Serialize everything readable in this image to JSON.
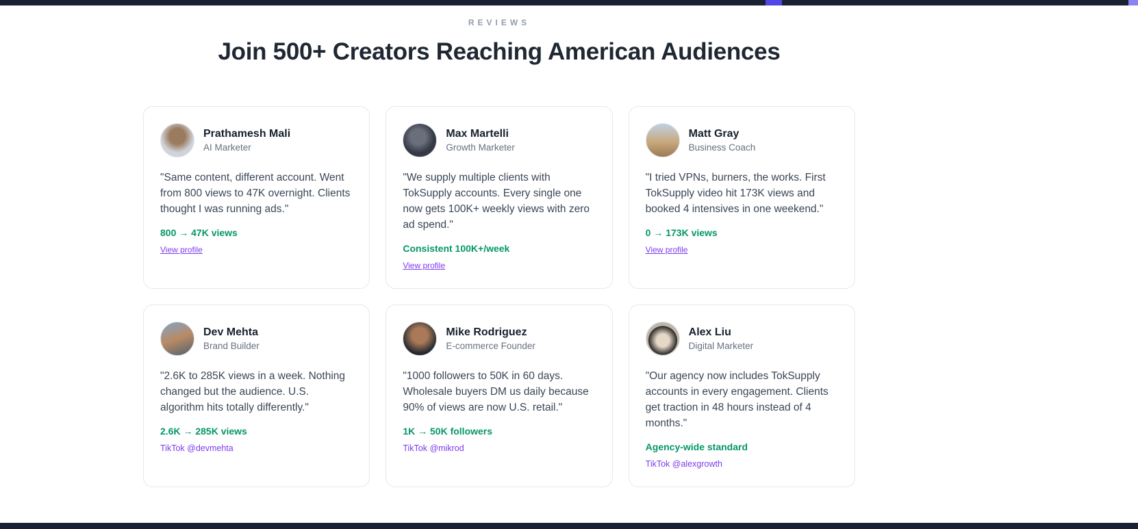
{
  "colors": {
    "strip": "#1b2032",
    "accent": "#4f46e5",
    "green": "#059669",
    "purple": "#7c3aed"
  },
  "section": {
    "eyebrow": "REVIEWS",
    "title": "Join 500+ Creators Reaching American Audiences"
  },
  "cards": [
    {
      "name": "Prathamesh Mali",
      "role": "AI Marketer",
      "quote": "\"Same content, different account. Went from 800 views to 47K overnight. Clients thought I was running ads.\"",
      "metric": "800 → 47K views",
      "link_label": "View profile"
    },
    {
      "name": "Max Martelli",
      "role": "Growth Marketer",
      "quote": "\"We supply multiple clients with TokSupply accounts. Every single one now gets 100K+ weekly views with zero ad spend.\"",
      "metric": "Consistent 100K+/week",
      "link_label": "View profile"
    },
    {
      "name": "Matt Gray",
      "role": "Business Coach",
      "quote": "\"I tried VPNs, burners, the works. First TokSupply video hit 173K views and booked 4 intensives in one weekend.\"",
      "metric": "0 → 173K views",
      "link_label": "View profile"
    },
    {
      "name": "Dev Mehta",
      "role": "Brand Builder",
      "quote": "\"2.6K to 285K views in a week. Nothing changed but the audience. U.S. algorithm hits totally differently.\"",
      "metric": "2.6K → 285K views",
      "link_label": "TikTok @devmehta"
    },
    {
      "name": "Mike Rodriguez",
      "role": "E-commerce Founder",
      "quote": "\"1000 followers to 50K in 60 days. Wholesale buyers DM us daily because 90% of views are now U.S. retail.\"",
      "metric": "1K → 50K followers",
      "link_label": "TikTok @mikrod"
    },
    {
      "name": "Alex Liu",
      "role": "Digital Marketer",
      "quote": "\"Our agency now includes TokSupply accounts in every engagement. Clients get traction in 48 hours instead of 4 months.\"",
      "metric": "Agency-wide standard",
      "link_label": "TikTok @alexgrowth"
    }
  ]
}
